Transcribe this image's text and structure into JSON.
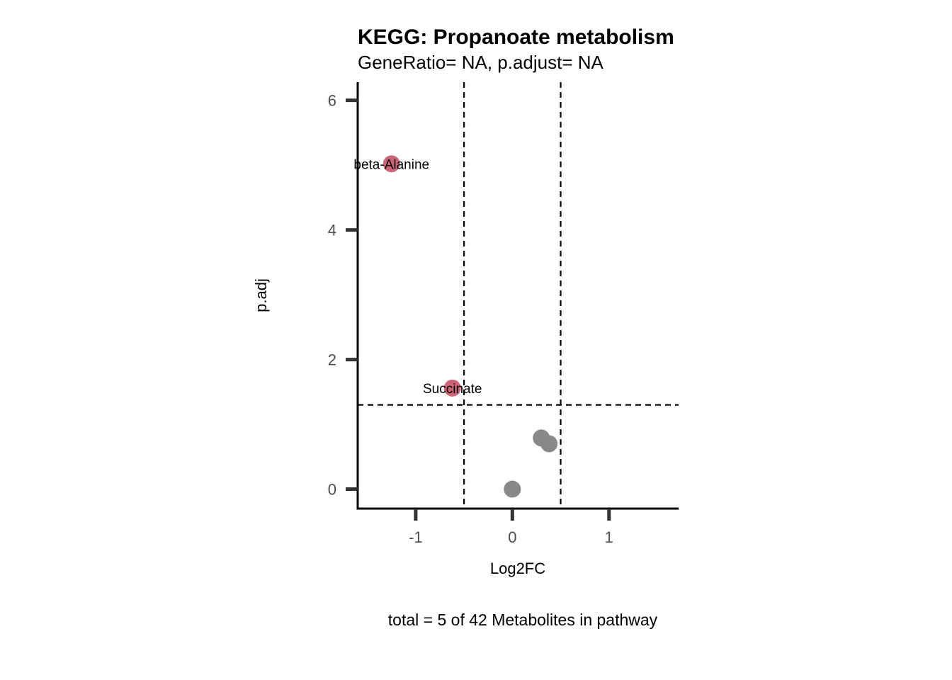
{
  "chart_data": {
    "type": "scatter",
    "title": "KEGG: Propanoate metabolism",
    "subtitle": "GeneRatio= NA, p.adjust= NA",
    "xlabel": "Log2FC",
    "ylabel": "p.adj",
    "caption": "total = 5 of 42 Metabolites in pathway",
    "xlim": [
      -1.6,
      1.72
    ],
    "ylim": [
      -0.3,
      6.28
    ],
    "xticks": [
      -1,
      0,
      1
    ],
    "xtick_labels": [
      "-1",
      "0",
      "1"
    ],
    "yticks": [
      0,
      2,
      4,
      6
    ],
    "ytick_labels": [
      "0",
      "2",
      "4",
      "6"
    ],
    "grid": false,
    "reference_lines": {
      "vertical": [
        -0.5,
        0.5
      ],
      "horizontal": [
        1.3
      ],
      "style": "dashed"
    },
    "colors": {
      "significant": "#cc6677",
      "not_significant": "#888888",
      "reference_line": "#000000",
      "axis": "#000000",
      "tick": "#333333"
    },
    "points": [
      {
        "x": -1.25,
        "y": 5.02,
        "label": "beta-Alanine",
        "significant": true
      },
      {
        "x": -0.62,
        "y": 1.56,
        "label": "Succinate",
        "significant": true
      },
      {
        "x": 0.3,
        "y": 0.79,
        "label": "",
        "significant": false
      },
      {
        "x": 0.38,
        "y": 0.7,
        "label": "",
        "significant": false
      },
      {
        "x": 0.0,
        "y": 0.0,
        "label": "",
        "significant": false
      }
    ]
  }
}
